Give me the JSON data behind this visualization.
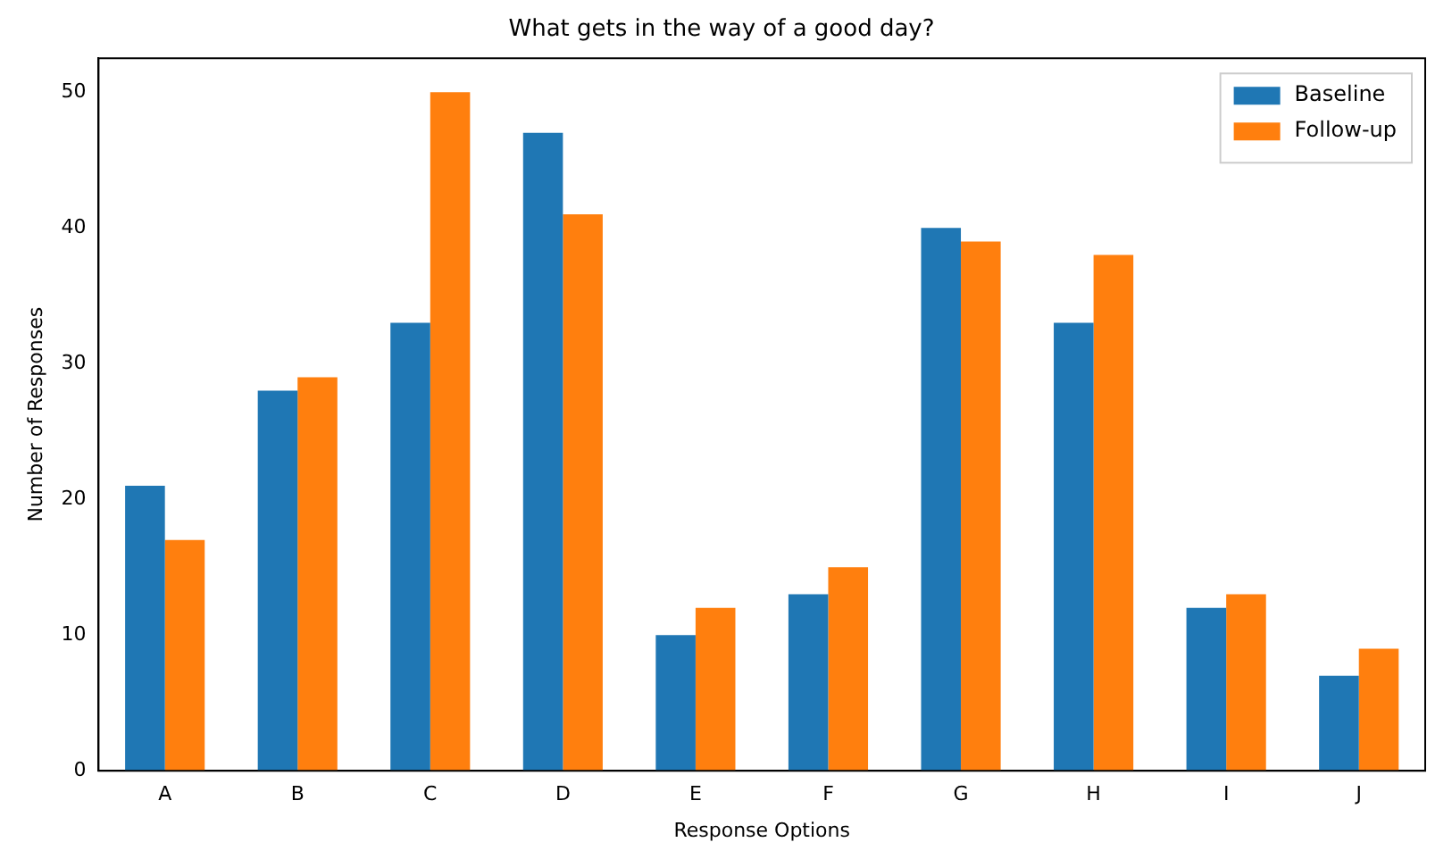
{
  "chart_data": {
    "type": "bar",
    "title": "What gets in the way of a good day?",
    "xlabel": "Response Options",
    "ylabel": "Number of Responses",
    "categories": [
      "A",
      "B",
      "C",
      "D",
      "E",
      "F",
      "G",
      "H",
      "I",
      "J"
    ],
    "series": [
      {
        "name": "Baseline",
        "color": "#1f77b4",
        "values": [
          21,
          28,
          33,
          47,
          10,
          13,
          40,
          33,
          12,
          7
        ]
      },
      {
        "name": "Follow-up",
        "color": "#ff7f0e",
        "values": [
          17,
          29,
          50,
          41,
          12,
          15,
          39,
          38,
          13,
          9
        ]
      }
    ],
    "ylim": [
      0,
      52.5
    ],
    "yticks": [
      0,
      10,
      20,
      30,
      40,
      50
    ],
    "legend": "top right"
  }
}
